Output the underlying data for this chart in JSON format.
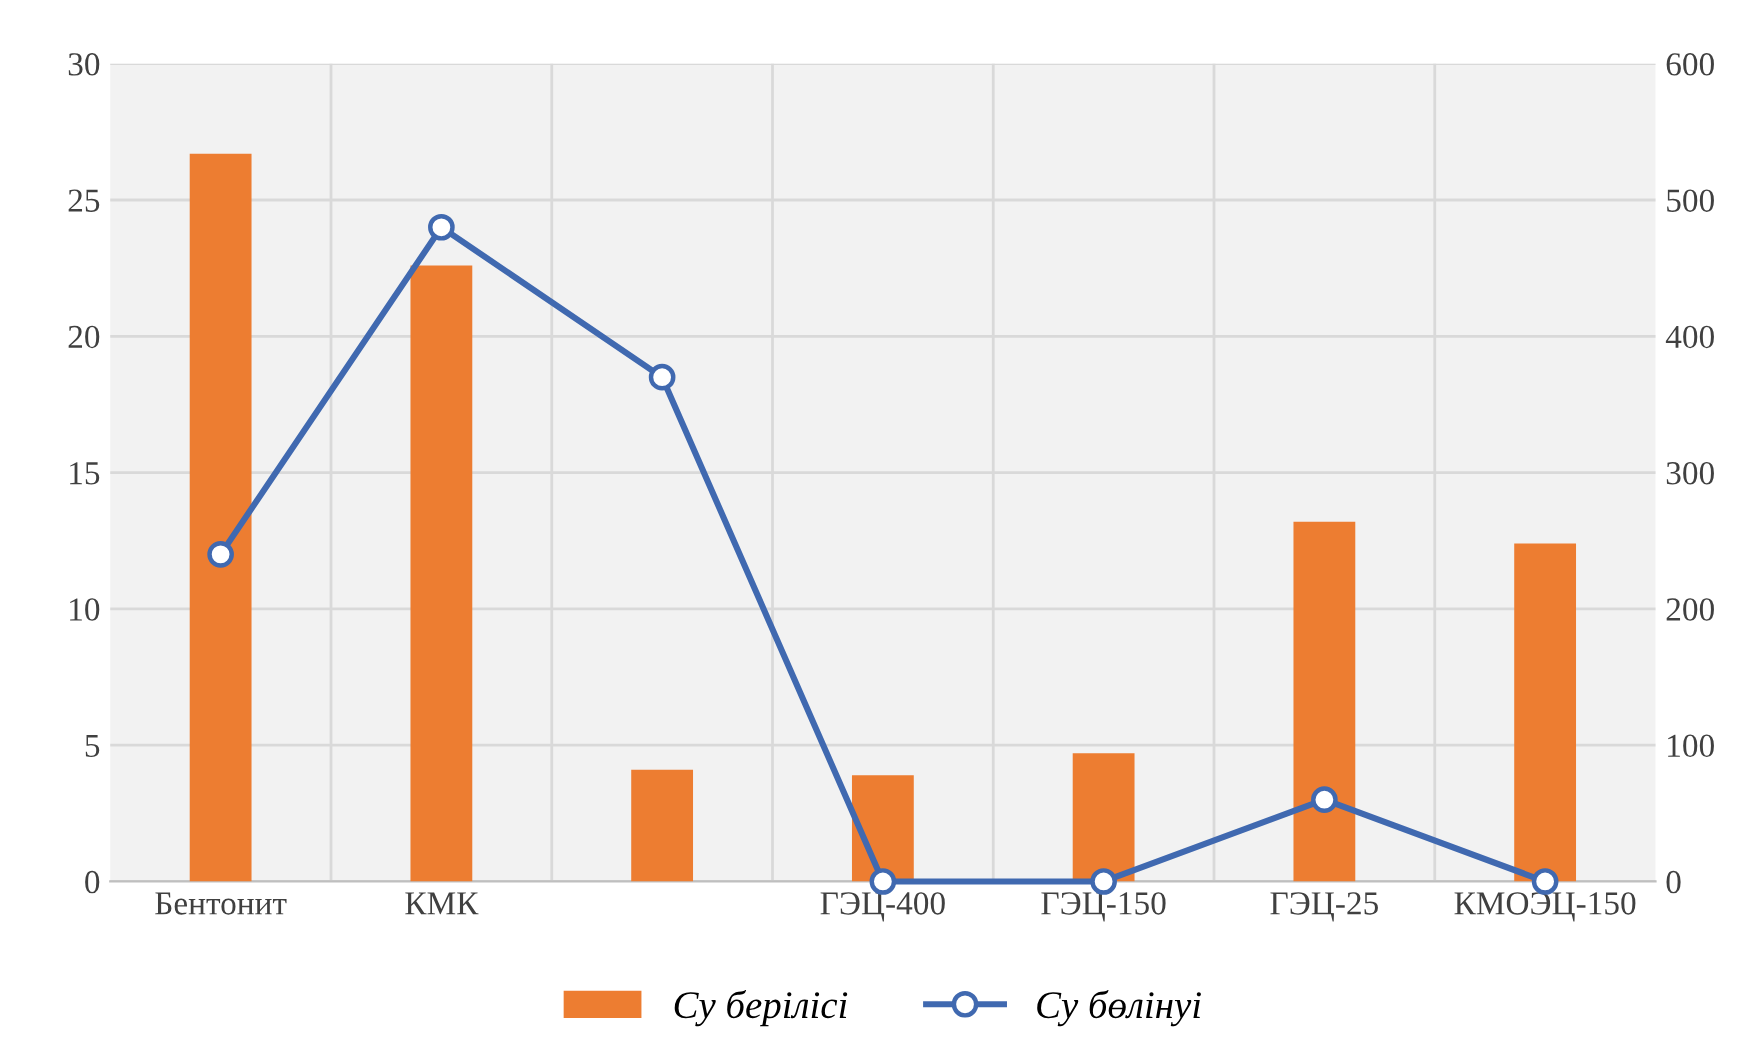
{
  "chart_data": {
    "type": "bar",
    "categories": [
      "Бентонит",
      "КМК",
      null,
      "ГЭЦ-400",
      "ГЭЦ-150",
      "ГЭЦ-25",
      "КМОЭЦ-150"
    ],
    "series": [
      {
        "name": "Су берілісі",
        "color": "#ed7d31",
        "values": [
          26.7,
          22.6,
          4.1,
          3.9,
          4.7,
          13.2,
          12.4
        ]
      },
      {
        "name": "Су бөлінуі",
        "type": "line",
        "axis": "y2",
        "color": "#4069b0",
        "values": [
          240,
          480,
          370,
          0,
          0,
          60,
          0
        ]
      }
    ],
    "ylim": [
      0,
      30
    ],
    "yticks": [
      0,
      5,
      10,
      15,
      20,
      25,
      30
    ],
    "y2lim": [
      0,
      600
    ],
    "y2ticks": [
      0,
      100,
      200,
      300,
      400,
      500,
      600
    ],
    "grid": true,
    "legend": "bottom",
    "marker": "circle",
    "line_style": "solid"
  }
}
